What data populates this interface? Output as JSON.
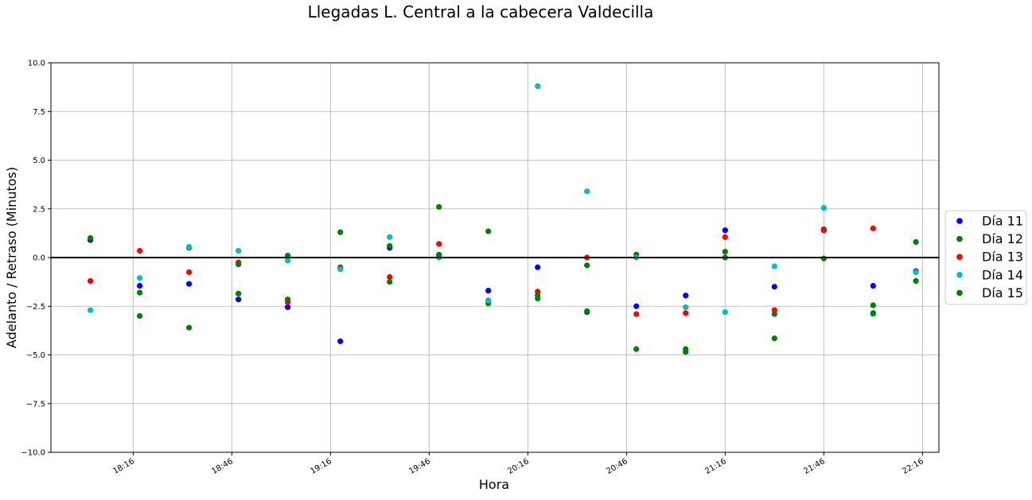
{
  "chart_data": {
    "type": "scatter",
    "title": "Llegadas L. Central a la cabecera Valdecilla",
    "xlabel": "Hora",
    "ylabel": "Adelanto / Retraso (Minutos)",
    "ylim": [
      -10,
      10
    ],
    "xlim": [
      "17:51",
      "22:21"
    ],
    "x_ticks": [
      "18:16",
      "18:46",
      "19:16",
      "19:46",
      "20:16",
      "20:46",
      "21:16",
      "21:46",
      "22:16"
    ],
    "y_ticks": [
      "10.0",
      "7.5",
      "5.0",
      "2.5",
      "0.0",
      "−2.5",
      "−5.0",
      "−7.5",
      "−10.0"
    ],
    "y_tick_values": [
      10,
      7.5,
      5,
      2.5,
      0,
      -2.5,
      -5,
      -7.5,
      -10
    ],
    "grid": true,
    "reference_line": 0,
    "legend_position": "right",
    "x": [
      "18:03",
      "18:18",
      "18:33",
      "18:48",
      "19:03",
      "19:19",
      "19:34",
      "19:49",
      "20:04",
      "20:19",
      "20:34",
      "20:49",
      "21:04",
      "21:16",
      "21:31",
      "21:46",
      "22:01",
      "22:14"
    ],
    "series": [
      {
        "name": "Día 11",
        "color": "#0000ff",
        "values": [
          0.9,
          -1.45,
          -1.35,
          -2.15,
          -2.55,
          -4.3,
          0.5,
          0.1,
          -1.7,
          -0.5,
          -2.8,
          -2.5,
          -1.95,
          1.4,
          -1.5,
          1.45,
          -1.45,
          -0.7
        ]
      },
      {
        "name": "Día 12",
        "color": "#008000",
        "values": [
          1.0,
          -1.8,
          0.5,
          -1.85,
          0.1,
          -0.5,
          -1.25,
          2.6,
          -2.35,
          -2.1,
          -2.75,
          0.15,
          -4.7,
          0.3,
          -2.9,
          1.45,
          -2.45,
          -1.2
        ]
      },
      {
        "name": "Día 13",
        "color": "#ff0000",
        "values": [
          -1.2,
          0.35,
          -0.75,
          -0.25,
          -2.3,
          -0.55,
          -1.0,
          0.7,
          -2.2,
          -1.75,
          0.0,
          -2.9,
          -2.85,
          1.05,
          -2.7,
          1.4,
          1.5,
          -0.75
        ]
      },
      {
        "name": "Día 14",
        "color": "#00bfbf",
        "values": [
          -2.7,
          -1.05,
          0.55,
          0.35,
          -0.15,
          -0.6,
          1.05,
          0.0,
          -2.2,
          8.8,
          3.4,
          0.0,
          -2.55,
          -2.8,
          -0.45,
          2.55,
          -2.9,
          -0.75
        ]
      },
      {
        "name": "Día 15",
        "color": "#007f00",
        "values": [
          1.0,
          -3.0,
          -3.6,
          -0.35,
          -2.15,
          1.3,
          0.6,
          0.15,
          1.35,
          -1.95,
          -0.4,
          -4.7,
          -4.85,
          0.0,
          -4.15,
          -0.05,
          -2.85,
          0.8
        ]
      }
    ]
  }
}
